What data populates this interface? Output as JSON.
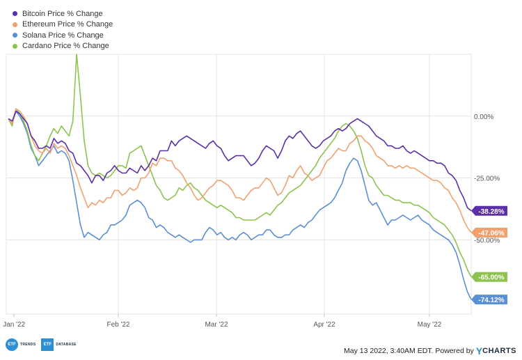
{
  "chart_data": {
    "type": "line",
    "x_tick_labels": [
      "Jan '22",
      "Feb '22",
      "Mar '22",
      "Apr '22",
      "May '22"
    ],
    "y_tick_labels": [
      "0.00%",
      "-25.00%",
      "-50.00%"
    ],
    "ylim": [
      -80,
      25
    ],
    "grid": true,
    "legend_position": "top-left",
    "series": [
      {
        "name": "Bitcoin Price % Change",
        "color": "#5b2fa7",
        "end_label": "-38.28%",
        "values": [
          -1,
          -2,
          2,
          1,
          -1,
          -3,
          -8,
          -10,
          -13,
          -13,
          -12,
          -13,
          -9,
          -11,
          -10,
          -11,
          -14,
          -15,
          -19,
          -20,
          -22,
          -24,
          -27,
          -24,
          -24,
          -26,
          -23,
          -22,
          -20,
          -22,
          -23,
          -23,
          -21,
          -22,
          -23,
          -20,
          -22,
          -20,
          -17,
          -18,
          -14,
          -14,
          -14,
          -10,
          -12,
          -10,
          -9,
          -8,
          -9,
          -10,
          -11,
          -12,
          -13,
          -11,
          -10,
          -12,
          -13,
          -16,
          -18,
          -17,
          -16,
          -16,
          -16,
          -18,
          -20,
          -19,
          -17,
          -14,
          -12,
          -13,
          -14,
          -17,
          -14,
          -10,
          -8,
          -9,
          -7,
          -6,
          -8,
          -10,
          -12,
          -13,
          -12,
          -10,
          -9,
          -8,
          -6,
          -5,
          -6,
          -5,
          -3,
          -2,
          -1,
          -2,
          -3,
          -4,
          -6,
          -8,
          -9,
          -10,
          -12,
          -12,
          -13,
          -13,
          -12,
          -14,
          -15,
          -14,
          -15,
          -16,
          -17,
          -18,
          -18,
          -19,
          -19,
          -20,
          -23,
          -24,
          -26,
          -30,
          -33,
          -37,
          -38.28
        ]
      },
      {
        "name": "Ethereum Price % Change",
        "color": "#f0a16e",
        "end_label": "-47.06%",
        "values": [
          -1,
          -3,
          3,
          2,
          0,
          -3,
          -8,
          -12,
          -14,
          -15,
          -13,
          -15,
          -11,
          -13,
          -12,
          -13,
          -16,
          -20,
          -24,
          -29,
          -33,
          -37,
          -35,
          -36,
          -34,
          -35,
          -33,
          -33,
          -30,
          -30,
          -32,
          -31,
          -29,
          -30,
          -29,
          -25,
          -25,
          -23,
          -19,
          -20,
          -17,
          -17,
          -18,
          -18,
          -21,
          -22,
          -24,
          -27,
          -29,
          -32,
          -34,
          -33,
          -31,
          -29,
          -28,
          -26,
          -26,
          -27,
          -28,
          -30,
          -33,
          -33,
          -34,
          -32,
          -30,
          -29,
          -29,
          -27,
          -25,
          -26,
          -29,
          -32,
          -31,
          -28,
          -24,
          -25,
          -22,
          -20,
          -23,
          -24,
          -26,
          -25,
          -24,
          -21,
          -18,
          -17,
          -15,
          -13,
          -14,
          -14,
          -11,
          -10,
          -8,
          -8,
          -10,
          -11,
          -13,
          -16,
          -17,
          -18,
          -20,
          -20,
          -21,
          -20,
          -21,
          -20,
          -21,
          -21,
          -22,
          -23,
          -24,
          -25,
          -26,
          -26,
          -27,
          -29,
          -30,
          -33,
          -35,
          -38,
          -42,
          -45,
          -47.06
        ]
      },
      {
        "name": "Solana Price % Change",
        "color": "#5b8fd4",
        "end_label": "-74.12%",
        "values": [
          -1,
          -3,
          2,
          0,
          -3,
          -7,
          -13,
          -16,
          -20,
          -18,
          -16,
          -14,
          -12,
          -15,
          -14,
          -15,
          -18,
          -26,
          -35,
          -44,
          -49,
          -47,
          -48,
          -49,
          -50,
          -48,
          -47,
          -44,
          -44,
          -43,
          -42,
          -40,
          -36,
          -35,
          -34,
          -35,
          -37,
          -41,
          -42,
          -45,
          -44,
          -45,
          -47,
          -48,
          -49,
          -48,
          -49,
          -50,
          -51,
          -50,
          -50,
          -50,
          -47,
          -45,
          -46,
          -48,
          -47,
          -49,
          -50,
          -49,
          -50,
          -48,
          -47,
          -48,
          -50,
          -49,
          -48,
          -48,
          -46,
          -46,
          -48,
          -49,
          -49,
          -48,
          -48,
          -46,
          -45,
          -44,
          -45,
          -43,
          -42,
          -40,
          -38,
          -37,
          -36,
          -35,
          -33,
          -30,
          -27,
          -22,
          -19,
          -17,
          -18,
          -22,
          -28,
          -34,
          -36,
          -35,
          -38,
          -41,
          -44,
          -42,
          -42,
          -41,
          -40,
          -41,
          -42,
          -41,
          -40,
          -42,
          -43,
          -44,
          -46,
          -47,
          -48,
          -49,
          -50,
          -52,
          -55,
          -60,
          -66,
          -71,
          -74.12
        ]
      },
      {
        "name": "Cardano Price % Change",
        "color": "#8dc24d",
        "end_label": "-65.00%",
        "values": [
          -1,
          -4,
          3,
          1,
          -2,
          -6,
          -12,
          -16,
          -18,
          -15,
          -12,
          -8,
          -5,
          -7,
          -4,
          -6,
          -8,
          -2,
          25,
          8,
          -10,
          -20,
          -23,
          -24,
          -23,
          -24,
          -25,
          -24,
          -22,
          -20,
          -20,
          -21,
          -15,
          -14,
          -13,
          -12,
          -16,
          -20,
          -24,
          -28,
          -30,
          -33,
          -34,
          -33,
          -32,
          -29,
          -30,
          -28,
          -27,
          -29,
          -30,
          -32,
          -34,
          -35,
          -36,
          -37,
          -36,
          -37,
          -38,
          -39,
          -41,
          -41,
          -42,
          -42,
          -42,
          -42,
          -41,
          -40,
          -39,
          -40,
          -38,
          -36,
          -35,
          -33,
          -31,
          -30,
          -29,
          -28,
          -26,
          -24,
          -22,
          -20,
          -17,
          -15,
          -13,
          -11,
          -9,
          -6,
          -4,
          -3,
          -4,
          -6,
          -9,
          -14,
          -20,
          -24,
          -25,
          -28,
          -30,
          -32,
          -32,
          -33,
          -34,
          -34,
          -35,
          -35,
          -35,
          -36,
          -36,
          -37,
          -38,
          -39,
          -41,
          -42,
          -43,
          -44,
          -46,
          -48,
          -51,
          -55,
          -58,
          -62,
          -65.0
        ]
      }
    ]
  },
  "legend": [
    {
      "label": "Bitcoin Price % Change",
      "color": "#5b2fa7"
    },
    {
      "label": "Ethereum Price % Change",
      "color": "#f0a16e"
    },
    {
      "label": "Solana Price % Change",
      "color": "#5b8fd4"
    },
    {
      "label": "Cardano Price % Change",
      "color": "#8dc24d"
    }
  ],
  "footer": {
    "logo1_mark": "ETF",
    "logo1_text": "TRENDS",
    "logo2_mark": "ETF",
    "logo2_text": "DATABASE",
    "timestamp": "May 13 2022, 3:40AM EDT. Powered by",
    "brand_y": "Y",
    "brand_rest": "CHARTS"
  }
}
